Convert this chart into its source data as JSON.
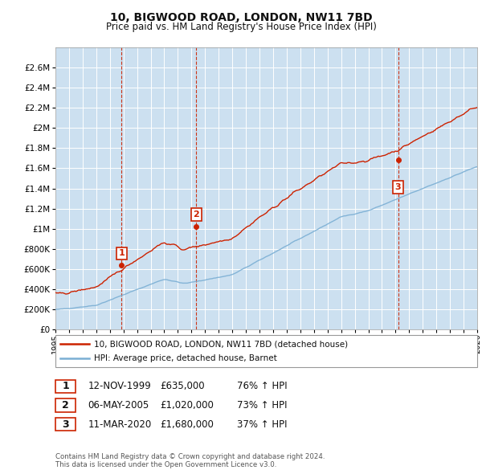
{
  "title": "10, BIGWOOD ROAD, LONDON, NW11 7BD",
  "subtitle": "Price paid vs. HM Land Registry's House Price Index (HPI)",
  "hpi_color": "#7bafd4",
  "price_color": "#cc2200",
  "vline_color": "#cc2200",
  "grid_color": "#ffffff",
  "plot_bg": "#cce0f0",
  "fig_bg": "#ffffff",
  "ylim": [
    0,
    2800000
  ],
  "yticks": [
    0,
    200000,
    400000,
    600000,
    800000,
    1000000,
    1200000,
    1400000,
    1600000,
    1800000,
    2000000,
    2200000,
    2400000,
    2600000
  ],
  "ytick_labels": [
    "£0",
    "£200K",
    "£400K",
    "£600K",
    "£800K",
    "£1M",
    "£1.2M",
    "£1.4M",
    "£1.6M",
    "£1.8M",
    "£2M",
    "£2.2M",
    "£2.4M",
    "£2.6M"
  ],
  "xlim_start": 1995,
  "xlim_end": 2026,
  "sales": [
    {
      "date_num": 1999.87,
      "price": 635000,
      "label": "1"
    },
    {
      "date_num": 2005.35,
      "price": 1020000,
      "label": "2"
    },
    {
      "date_num": 2020.19,
      "price": 1680000,
      "label": "3"
    }
  ],
  "legend_entry1": "10, BIGWOOD ROAD, LONDON, NW11 7BD (detached house)",
  "legend_entry2": "HPI: Average price, detached house, Barnet",
  "table_rows": [
    {
      "num": "1",
      "date": "12-NOV-1999",
      "price": "£635,000",
      "pct": "76% ↑ HPI"
    },
    {
      "num": "2",
      "date": "06-MAY-2005",
      "price": "£1,020,000",
      "pct": "73% ↑ HPI"
    },
    {
      "num": "3",
      "date": "11-MAR-2020",
      "price": "£1,680,000",
      "pct": "37% ↑ HPI"
    }
  ],
  "footer": "Contains HM Land Registry data © Crown copyright and database right 2024.\nThis data is licensed under the Open Government Licence v3.0."
}
